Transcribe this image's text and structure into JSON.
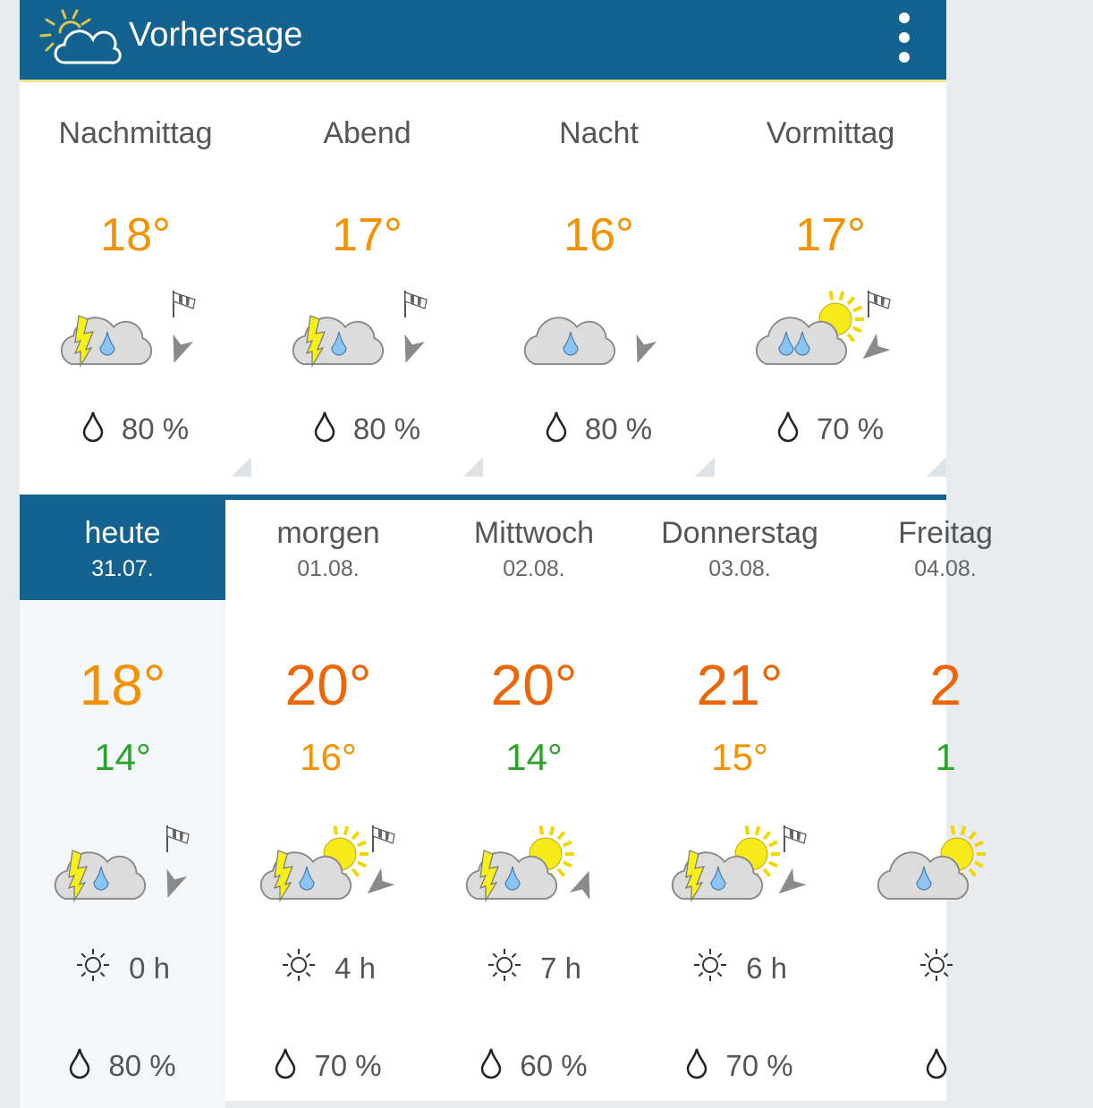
{
  "app": {
    "title": "Vorhersage",
    "menu_icon": "more-vert-icon",
    "logo_icon": "sun-cloud-logo-icon",
    "header_color": "#13628f"
  },
  "periods": [
    {
      "label": "Nachmittag",
      "temp": "18°",
      "temp_color": "#f39200",
      "icon": "thunder-rain",
      "wind_flag": true,
      "wind_rotation": 200,
      "rain": "80 %"
    },
    {
      "label": "Abend",
      "temp": "17°",
      "temp_color": "#f39200",
      "icon": "thunder-rain",
      "wind_flag": true,
      "wind_rotation": 200,
      "rain": "80 %"
    },
    {
      "label": "Nacht",
      "temp": "16°",
      "temp_color": "#f39200",
      "icon": "rain",
      "wind_flag": false,
      "wind_rotation": 200,
      "rain": "80 %"
    },
    {
      "label": "Vormittag",
      "temp": "17°",
      "temp_color": "#f39200",
      "icon": "sun-rain",
      "wind_flag": true,
      "wind_rotation": 230,
      "rain": "70 %"
    }
  ],
  "days": [
    {
      "name": "heute",
      "date": "31.07.",
      "max": "18°",
      "max_color": "#f39200",
      "min": "14°",
      "min_color": "#2aa52a",
      "icon": "thunder-rain",
      "wind_flag": true,
      "wind_rotation": 200,
      "sun": "0 h",
      "rain": "80 %",
      "selected": true
    },
    {
      "name": "morgen",
      "date": "01.08.",
      "max": "20°",
      "max_color": "#ec6608",
      "min": "16°",
      "min_color": "#f39200",
      "icon": "thunder-sun-rain",
      "wind_flag": true,
      "wind_rotation": 230,
      "sun": "4 h",
      "rain": "70 %"
    },
    {
      "name": "Mittwoch",
      "date": "02.08.",
      "max": "20°",
      "max_color": "#ec6608",
      "min": "14°",
      "min_color": "#2aa52a",
      "icon": "thunder-sun-rain",
      "wind_flag": false,
      "wind_rotation": 20,
      "sun": "7 h",
      "rain": "60 %"
    },
    {
      "name": "Donnerstag",
      "date": "03.08.",
      "max": "21°",
      "max_color": "#ec6608",
      "min": "15°",
      "min_color": "#f39200",
      "icon": "thunder-sun-rain",
      "wind_flag": true,
      "wind_rotation": 230,
      "sun": "6 h",
      "rain": "70 %"
    },
    {
      "name": "Freitag",
      "date": "04.08.",
      "max": "2",
      "max_color": "#ec6608",
      "min": "1",
      "min_color": "#2aa52a",
      "icon": "sun-rain-single",
      "wind_flag": false,
      "wind_rotation": 0,
      "sun": "",
      "rain": ""
    }
  ]
}
